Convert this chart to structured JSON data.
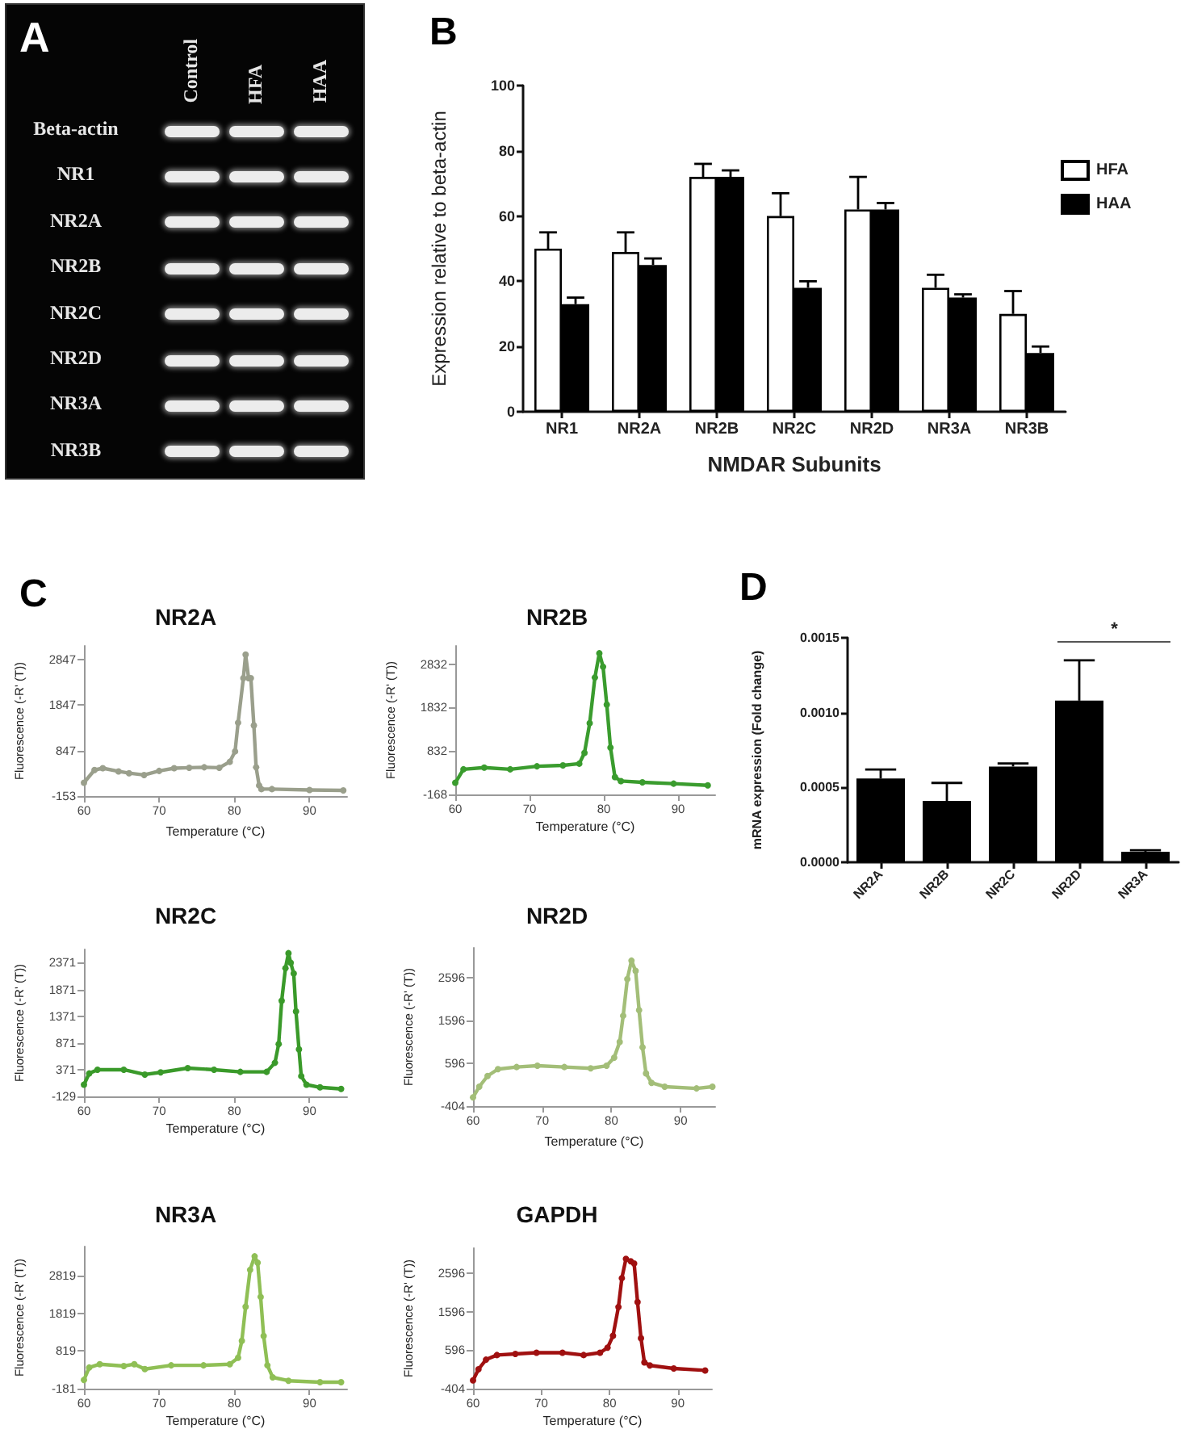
{
  "chart_data": [
    {
      "type": "other",
      "annotations": [
        "A"
      ],
      "categories": [
        "Control",
        "HFA",
        "HAA"
      ],
      "y_categories": [
        "Beta-actin",
        "NR1",
        "NR2A",
        "NR2B",
        "NR2C",
        "NR2D",
        "NR3A",
        "NR3B"
      ]
    },
    {
      "type": "bar",
      "annotations": [
        "B"
      ],
      "categories": [
        "NR1",
        "NR2A",
        "NR2B",
        "NR2C",
        "NR2D",
        "NR3A",
        "NR3B"
      ],
      "series": [
        {
          "name": "HFA",
          "color": "#ffffff",
          "values": [
            50,
            49,
            72,
            60,
            62,
            38,
            30
          ],
          "errors": [
            [
              50,
              55
            ],
            [
              49,
              55
            ],
            [
              72,
              76
            ],
            [
              60,
              67
            ],
            [
              62,
              72
            ],
            [
              38,
              42
            ],
            [
              30,
              37
            ]
          ]
        },
        {
          "name": "HAA",
          "color": "#000000",
          "values": [
            33,
            45,
            72,
            38,
            62,
            35,
            18
          ],
          "errors": [
            [
              33,
              35
            ],
            [
              45,
              47
            ],
            [
              72,
              74
            ],
            [
              38,
              40
            ],
            [
              62,
              64
            ],
            [
              35,
              36
            ],
            [
              18,
              20
            ]
          ]
        }
      ],
      "xlabel": "NMDAR Subunits",
      "ylabel": "Expression relative to beta-actin",
      "ylim": [
        0,
        100
      ],
      "yticks": [
        0,
        20,
        40,
        60,
        80,
        100
      ],
      "legend": "right"
    },
    {
      "type": "line",
      "title": "NR2A",
      "annotations": [
        "C"
      ],
      "xlabel": "Temperature (°C)",
      "ylabel": "Fluorescence (-R' (T))",
      "xlim": [
        60,
        95
      ],
      "xticks": [
        60,
        70,
        80,
        90
      ],
      "ylim": [
        -153,
        3150
      ],
      "yticks": [
        -153,
        847,
        1847,
        2847
      ],
      "marker": "circle",
      "line_style": "solid",
      "x": [
        60,
        61.4,
        62.5,
        64.6,
        66,
        68,
        70,
        72,
        74,
        76,
        78,
        79.4,
        80.1,
        80.5,
        81.2,
        81.5,
        81.9,
        82.2,
        82.6,
        82.9,
        83.3,
        83.6,
        85,
        90,
        94.5
      ],
      "series": [
        {
          "color": "#9a9f8c",
          "values": [
            140,
            420,
            460,
            390,
            350,
            310,
            400,
            460,
            470,
            480,
            470,
            600,
            830,
            1460,
            2440,
            2960,
            2440,
            2440,
            1400,
            480,
            80,
            0,
            0,
            -20,
            -30
          ]
        }
      ]
    },
    {
      "type": "line",
      "title": "NR2B",
      "xlabel": "Temperature (°C)",
      "ylabel": "Fluorescence (-R' (T))",
      "xlim": [
        60,
        95
      ],
      "xticks": [
        60,
        70,
        80,
        90
      ],
      "ylim": [
        -168,
        3250
      ],
      "yticks": [
        -168,
        832,
        1832,
        2832
      ],
      "marker": "circle",
      "line_style": "solid",
      "x": [
        60,
        61.1,
        63.9,
        67.4,
        71,
        74.5,
        76.7,
        77.4,
        78.1,
        78.8,
        79.4,
        79.9,
        80.4,
        80.9,
        81.5,
        82.3,
        85.2,
        89.4,
        94
      ],
      "series": [
        {
          "color": "#3a9c2e",
          "values": [
            100,
            410,
            450,
            410,
            480,
            500,
            540,
            790,
            1470,
            2520,
            3080,
            2770,
            1900,
            910,
            230,
            140,
            110,
            80,
            40
          ]
        }
      ]
    },
    {
      "type": "line",
      "title": "NR2C",
      "xlabel": "Temperature (°C)",
      "ylabel": "Fluorescence (-R' (T))",
      "xlim": [
        60,
        95
      ],
      "xticks": [
        60,
        70,
        80,
        90
      ],
      "ylim": [
        -129,
        2620
      ],
      "yticks": [
        -129,
        371,
        871,
        1371,
        1871,
        2371
      ],
      "marker": "circle",
      "line_style": "solid",
      "x": [
        60,
        60.7,
        61.8,
        65.3,
        68.1,
        70.2,
        73.8,
        77.3,
        80.8,
        84.3,
        85.4,
        85.9,
        86.3,
        86.8,
        87.2,
        87.5,
        87.9,
        88.2,
        88.6,
        88.9,
        89.6,
        91.4,
        94.2
      ],
      "series": [
        {
          "color": "#3a9a2a",
          "values": [
            90,
            300,
            370,
            370,
            280,
            320,
            400,
            370,
            330,
            330,
            500,
            850,
            1660,
            2270,
            2550,
            2370,
            2170,
            1460,
            750,
            250,
            90,
            40,
            10
          ]
        }
      ]
    },
    {
      "type": "line",
      "title": "NR2D",
      "xlabel": "Temperature (°C)",
      "ylabel": "Fluorescence (-R' (T))",
      "xlim": [
        60,
        95
      ],
      "xticks": [
        60,
        70,
        80,
        90
      ],
      "ylim": [
        -404,
        3300
      ],
      "yticks": [
        -404,
        596,
        1596,
        2596
      ],
      "marker": "circle",
      "line_style": "solid",
      "x": [
        60,
        60.9,
        62.1,
        63.6,
        66.3,
        69.3,
        73.2,
        77,
        79.3,
        80.4,
        81.2,
        81.7,
        82.3,
        82.9,
        83.5,
        84,
        84.5,
        85,
        85.8,
        87.7,
        92.3,
        94.6
      ],
      "series": [
        {
          "color": "#a3be78",
          "values": [
            -200,
            50,
            300,
            460,
            510,
            540,
            510,
            480,
            540,
            730,
            1100,
            1710,
            2570,
            3000,
            2760,
            1840,
            970,
            360,
            140,
            50,
            10,
            50
          ]
        }
      ]
    },
    {
      "type": "line",
      "title": "NR3A",
      "xlabel": "Temperature (°C)",
      "ylabel": "Fluorescence (-R' (T))",
      "xlim": [
        60,
        95
      ],
      "xticks": [
        60,
        70,
        80,
        90
      ],
      "ylim": [
        -181,
        3600
      ],
      "yticks": [
        -181,
        819,
        1819,
        2819
      ],
      "marker": "circle",
      "line_style": "solid",
      "x": [
        60,
        60.7,
        62.1,
        65.3,
        66.7,
        68.1,
        71.6,
        75.9,
        79.4,
        80.5,
        81,
        81.5,
        82.1,
        82.7,
        83.1,
        83.5,
        83.9,
        84.4,
        85.1,
        87.2,
        91.4,
        94.2
      ],
      "series": [
        {
          "color": "#8fbf55",
          "values": [
            50,
            380,
            470,
            420,
            470,
            340,
            440,
            440,
            470,
            640,
            1090,
            2000,
            2980,
            3340,
            3170,
            2260,
            1220,
            440,
            120,
            30,
            -10,
            -10
          ]
        }
      ]
    },
    {
      "type": "line",
      "title": "GAPDH",
      "xlabel": "Temperature (°C)",
      "ylabel": "Fluorescence (-R' (T))",
      "xlim": [
        60,
        95
      ],
      "xticks": [
        60,
        70,
        80,
        90
      ],
      "ylim": [
        -404,
        3250
      ],
      "yticks": [
        -404,
        596,
        1596,
        2596
      ],
      "marker": "circle",
      "line_style": "solid",
      "x": [
        60,
        60.8,
        61.9,
        63.5,
        66.2,
        69.3,
        73.1,
        76.2,
        78.6,
        79.7,
        80.5,
        81.3,
        81.8,
        82.4,
        83.1,
        83.6,
        84.1,
        84.6,
        85.1,
        85.9,
        89.4,
        94
      ],
      "series": [
        {
          "color": "#a01010",
          "values": [
            -190,
            100,
            350,
            470,
            500,
            530,
            530,
            470,
            530,
            660,
            970,
            1720,
            2470,
            2970,
            2910,
            2850,
            1850,
            910,
            280,
            200,
            120,
            70
          ]
        }
      ]
    },
    {
      "type": "bar",
      "annotations": [
        "D",
        "*"
      ],
      "categories": [
        "NR2A",
        "NR2B",
        "NR2C",
        "NR2D",
        "NR3A"
      ],
      "color": "#000000",
      "values": [
        0.00056,
        0.00041,
        0.00064,
        0.00108,
        7e-05
      ],
      "errors": [
        [
          0.00056,
          0.00062
        ],
        [
          0.00041,
          0.00053
        ],
        [
          0.00064,
          0.00066
        ],
        [
          0.00108,
          0.00135
        ],
        [
          7e-05,
          8e-05
        ]
      ],
      "ylabel": "mRNA expression (Fold change)",
      "ylim": [
        0,
        0.0015
      ],
      "yticks": [
        {
          "value": 0,
          "label": "0.0000"
        },
        0.0005,
        {
          "value": 0.001,
          "label": "0.0010"
        },
        0.0015
      ]
    }
  ]
}
